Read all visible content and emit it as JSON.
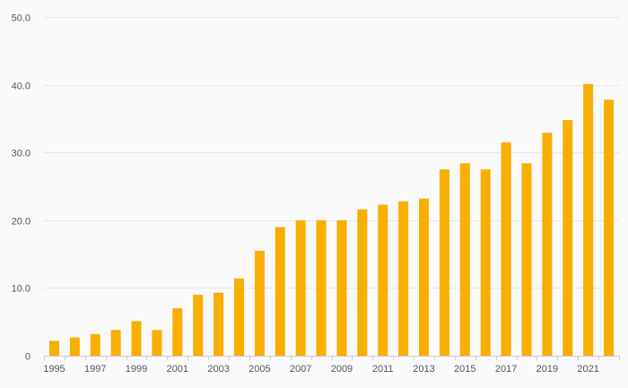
{
  "chart_data": {
    "type": "bar",
    "title": "",
    "xlabel": "",
    "ylabel": "",
    "categories": [
      "1995",
      "1996",
      "1997",
      "1998",
      "1999",
      "2000",
      "2001",
      "2002",
      "2003",
      "2004",
      "2005",
      "2006",
      "2007",
      "2008",
      "2009",
      "2010",
      "2011",
      "2012",
      "2013",
      "2014",
      "2015",
      "2016",
      "2017",
      "2018",
      "2019",
      "2020",
      "2021",
      "2022"
    ],
    "values": [
      2.2,
      2.7,
      3.2,
      3.8,
      5.1,
      3.8,
      7.0,
      9.0,
      9.3,
      11.4,
      15.5,
      19.0,
      20.0,
      20.0,
      20.0,
      21.6,
      22.3,
      22.8,
      23.2,
      27.5,
      28.4,
      27.5,
      31.5,
      28.4,
      32.9,
      34.8,
      40.1,
      37.8
    ],
    "x_tick_labels": [
      "1995",
      "1997",
      "1999",
      "2001",
      "2003",
      "2005",
      "2007",
      "2009",
      "2011",
      "2013",
      "2015",
      "2017",
      "2019",
      "2021"
    ],
    "y_ticks": [
      0,
      10,
      20,
      30,
      40,
      50
    ],
    "y_tick_labels": [
      "0",
      "10.0",
      "20.0",
      "30.0",
      "40.0",
      "50.0"
    ],
    "ylim": [
      0,
      50
    ],
    "grid": true,
    "legend": "none",
    "bar_color": "#f9ae00"
  }
}
